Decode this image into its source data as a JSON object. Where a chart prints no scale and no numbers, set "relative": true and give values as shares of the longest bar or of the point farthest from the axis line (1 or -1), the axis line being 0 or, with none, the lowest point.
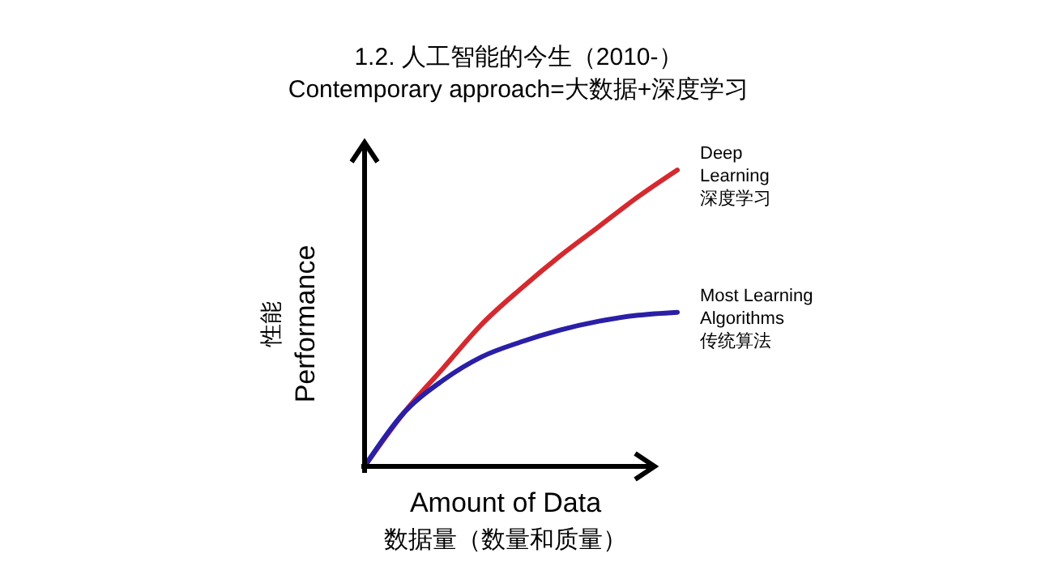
{
  "chart_data": {
    "type": "line",
    "title": "1.2. 人工智能的今生（2010-）",
    "subtitle": "Contemporary approach=大数据+深度学习",
    "xlabel": "Amount of Data\n数据量（数量和质量）",
    "ylabel": "性能\nPerformance",
    "relative": true,
    "legend": false,
    "marker": "none",
    "line_style": "solid",
    "categories": [
      null,
      null,
      null,
      null,
      null,
      null,
      null,
      null,
      null
    ],
    "series": [
      {
        "name": "Deep\nLearning\n深度学习",
        "color": "#d42a2f",
        "values": [
          0,
          0.18,
          0.33,
          0.48,
          0.6,
          0.71,
          0.81,
          0.91,
          1
        ]
      },
      {
        "name": "Most Learning\nAlgorithms\n传统算法",
        "color": "#2a1fa6",
        "values": [
          0,
          0.18,
          0.29,
          0.37,
          0.42,
          0.46,
          0.49,
          0.51,
          0.52
        ]
      }
    ]
  }
}
